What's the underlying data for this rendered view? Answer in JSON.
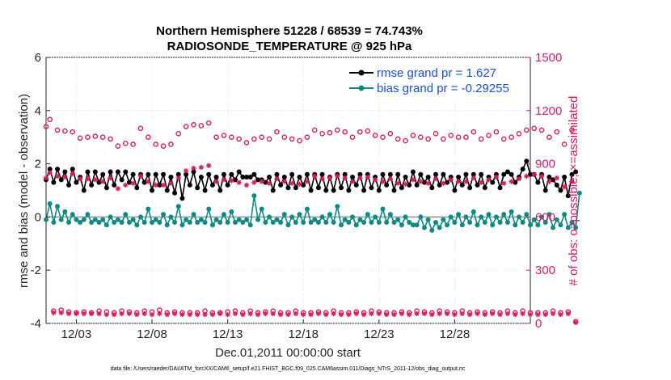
{
  "chart_data": {
    "type": "line",
    "title_lines": [
      "Northern Hemisphere 51228 / 68539 = 74.743%",
      "RADIOSONDE_TEMPERATURE @ 925 hPa"
    ],
    "ylabel_left": "rmse and bias (model - observation)",
    "ylabel_right": "# of obs: o=possible; ×=assimilated",
    "xlabel": "Dec.01,2011 00:00:00 start",
    "footnote": "data file: /Users/raeder/DAI/ATM_forcXX/CAM6_setup/f.e21.FHIST_BGC.f09_025.CAM6assim.011/Diags_NTrS_2011-12/obs_diag_output.nc",
    "x_range": [
      1,
      33
    ],
    "ylim_left": [
      -4,
      6
    ],
    "ylim_right": [
      0,
      1500
    ],
    "yticks_left": [
      "-4",
      "-2",
      "0",
      "2",
      "4",
      "6"
    ],
    "yticks_right": [
      "0",
      "300",
      "600",
      "900",
      "1200",
      "1500"
    ],
    "xticks": [
      {
        "label": "12/03",
        "day": 3
      },
      {
        "label": "12/08",
        "day": 8
      },
      {
        "label": "12/13",
        "day": 13
      },
      {
        "label": "12/18",
        "day": 18
      },
      {
        "label": "12/23",
        "day": 23
      },
      {
        "label": "12/28",
        "day": 28
      }
    ],
    "zero_line": 0,
    "legend": [
      "rmse grand pr = 1.627",
      "bias grand pr = -0.29255"
    ],
    "colors": {
      "rmse": "#000000",
      "bias": "#0e8a84",
      "obs": "#d81b60",
      "zero": "#aaaaaa",
      "legend_text": "#1a4fd6"
    },
    "x_start_day": 1,
    "x_step_days": 0.25,
    "series": [
      {
        "name": "rmse",
        "axis": "left",
        "values": [
          1.4,
          1.8,
          1.3,
          1.8,
          1.4,
          1.7,
          1.2,
          1.8,
          1.3,
          1.5,
          1.0,
          1.7,
          1.2,
          1.7,
          1.3,
          1.6,
          1.1,
          1.7,
          1.2,
          1.7,
          1.4,
          1.7,
          1.3,
          1.6,
          1.1,
          1.6,
          1.3,
          1.6,
          1.0,
          1.6,
          1.2,
          1.6,
          1.0,
          1.5,
          0.9,
          1.6,
          0.7,
          1.6,
          1.2,
          1.7,
          1.1,
          1.5,
          1.0,
          1.6,
          1.2,
          1.5,
          1.0,
          1.6,
          1.2,
          1.6,
          1.4,
          1.7,
          1.5,
          1.5,
          1.5,
          1.6,
          1.4,
          1.4,
          1.3,
          1.5,
          1.0,
          1.6,
          1.2,
          1.5,
          1.1,
          1.6,
          1.1,
          1.5,
          1.2,
          1.6,
          1.0,
          1.6,
          1.1,
          1.6,
          1.0,
          1.5,
          1.0,
          1.6,
          1.1,
          1.6,
          1.0,
          1.5,
          1.2,
          1.6,
          1.0,
          1.6,
          1.1,
          1.5,
          1.0,
          1.6,
          1.2,
          1.6,
          1.0,
          1.6,
          1.1,
          1.5,
          1.2,
          1.7,
          1.2,
          1.6,
          1.3,
          1.5,
          1.1,
          1.6,
          1.2,
          1.6,
          1.3,
          1.5,
          1.0,
          1.5,
          1.2,
          1.6,
          1.1,
          1.6,
          1.2,
          1.6,
          1.1,
          1.5,
          1.3,
          1.6,
          1.1,
          1.6,
          1.7,
          1.6,
          1.3,
          1.5,
          1.8,
          2.1,
          1.6,
          1.6,
          1.3,
          1.6,
          1.0,
          1.5,
          1.4,
          1.2,
          1.0,
          1.5,
          0.8,
          1.6,
          1.7
        ]
      },
      {
        "name": "bias",
        "axis": "left",
        "values": [
          -0.1,
          0.5,
          -0.2,
          0.4,
          -0.1,
          0.2,
          -0.2,
          0.1,
          -0.1,
          -0.2,
          -0.1,
          0.1,
          -0.2,
          -0.1,
          -0.2,
          -0.1,
          -0.3,
          0.0,
          -0.2,
          -0.1,
          -0.2,
          0.1,
          -0.2,
          -0.1,
          -0.3,
          0.0,
          -0.2,
          0.3,
          -0.2,
          -0.1,
          -0.2,
          0.1,
          -0.3,
          0.0,
          -0.2,
          0.4,
          -0.3,
          -0.1,
          -0.2,
          0.1,
          -0.2,
          -0.1,
          -0.2,
          0.3,
          -0.3,
          -0.1,
          -0.2,
          0.1,
          -0.2,
          0.2,
          -0.2,
          -0.1,
          -0.2,
          -0.1,
          -0.3,
          0.8,
          -0.1,
          0.3,
          -0.2,
          0.0,
          -0.2,
          -0.1,
          -0.2,
          0.1,
          -0.3,
          0.0,
          -0.2,
          0.1,
          -0.2,
          0.3,
          -0.2,
          -0.1,
          -0.2,
          0.0,
          -0.2,
          0.1,
          -0.2,
          0.4,
          -0.3,
          -0.1,
          -0.2,
          0.0,
          -0.3,
          -0.1,
          -0.2,
          0.1,
          -0.2,
          0.0,
          -0.2,
          0.3,
          -0.2,
          0.1,
          -0.2,
          -0.1,
          -0.3,
          0.0,
          -0.2,
          -0.3,
          -0.3,
          0.0,
          -0.4,
          -0.1,
          -0.5,
          -0.2,
          -0.4,
          -0.1,
          -0.3,
          0.0,
          -0.2,
          0.1,
          -0.3,
          0.0,
          -0.2,
          0.2,
          -0.3,
          0.0,
          -0.2,
          0.1,
          -0.3,
          0.0,
          -0.2,
          0.1,
          -0.2,
          0.2,
          -0.3,
          0.0,
          -0.2,
          0.1,
          -0.3,
          -0.1,
          -0.3,
          0.0,
          -0.2,
          0.1,
          -0.4,
          -0.1,
          -0.3,
          0.1,
          -0.4,
          -0.2,
          -0.4,
          0.9
        ]
      },
      {
        "name": "obs_possible",
        "axis": "right",
        "values": [
          1110,
          1150,
          70,
          1090,
          75,
          1085,
          65,
          1080,
          60,
          1045,
          65,
          1050,
          60,
          1055,
          70,
          1050,
          65,
          1040,
          60,
          1000,
          70,
          1015,
          65,
          1010,
          60,
          1100,
          70,
          1050,
          65,
          1010,
          75,
          1000,
          60,
          1010,
          65,
          1070,
          60,
          1110,
          60,
          1120,
          60,
          1115,
          70,
          1130,
          60,
          1050,
          60,
          1060,
          65,
          1050,
          70,
          1040,
          60,
          1020,
          70,
          1040,
          60,
          1050,
          65,
          1040,
          70,
          1080,
          60,
          1050,
          60,
          1040,
          70,
          1030,
          60,
          1050,
          60,
          1090,
          65,
          1070,
          60,
          1075,
          70,
          1090,
          60,
          1080,
          60,
          1050,
          65,
          1080,
          60,
          1085,
          70,
          1060,
          65,
          1050,
          60,
          1070,
          60,
          1040,
          65,
          1030,
          60,
          1060,
          70,
          1050,
          65,
          1040,
          60,
          1070,
          70,
          1040,
          65,
          1060,
          60,
          1050,
          70,
          1050,
          60,
          1080,
          65,
          1040,
          60,
          1060,
          65,
          1080,
          60,
          1040,
          70,
          1050,
          60,
          1070,
          70,
          1090,
          60,
          1100,
          60,
          1090,
          60,
          1050,
          70,
          1080,
          60,
          1010,
          65,
          1090,
          10
        ]
      },
      {
        "name": "obs_assimilated",
        "axis": "right",
        "values": [
          820,
          850,
          60,
          830,
          60,
          825,
          55,
          845,
          55,
          815,
          55,
          815,
          55,
          810,
          55,
          800,
          50,
          820,
          50,
          760,
          55,
          780,
          55,
          790,
          50,
          830,
          55,
          800,
          50,
          780,
          55,
          780,
          50,
          790,
          55,
          820,
          50,
          860,
          50,
          875,
          50,
          880,
          50,
          890,
          50,
          800,
          55,
          810,
          50,
          805,
          55,
          795,
          50,
          780,
          55,
          795,
          50,
          800,
          55,
          790,
          55,
          815,
          50,
          800,
          50,
          790,
          55,
          785,
          50,
          800,
          50,
          830,
          55,
          815,
          50,
          820,
          55,
          830,
          50,
          820,
          50,
          800,
          55,
          820,
          50,
          825,
          55,
          810,
          55,
          800,
          50,
          815,
          50,
          790,
          55,
          785,
          50,
          810,
          55,
          800,
          55,
          790,
          50,
          815,
          55,
          790,
          55,
          810,
          50,
          800,
          55,
          800,
          50,
          820,
          55,
          795,
          50,
          810,
          55,
          825,
          50,
          790,
          55,
          800,
          50,
          815,
          55,
          830,
          50,
          840,
          50,
          830,
          50,
          800,
          55,
          820,
          50,
          770,
          55,
          800,
          5
        ]
      }
    ]
  }
}
